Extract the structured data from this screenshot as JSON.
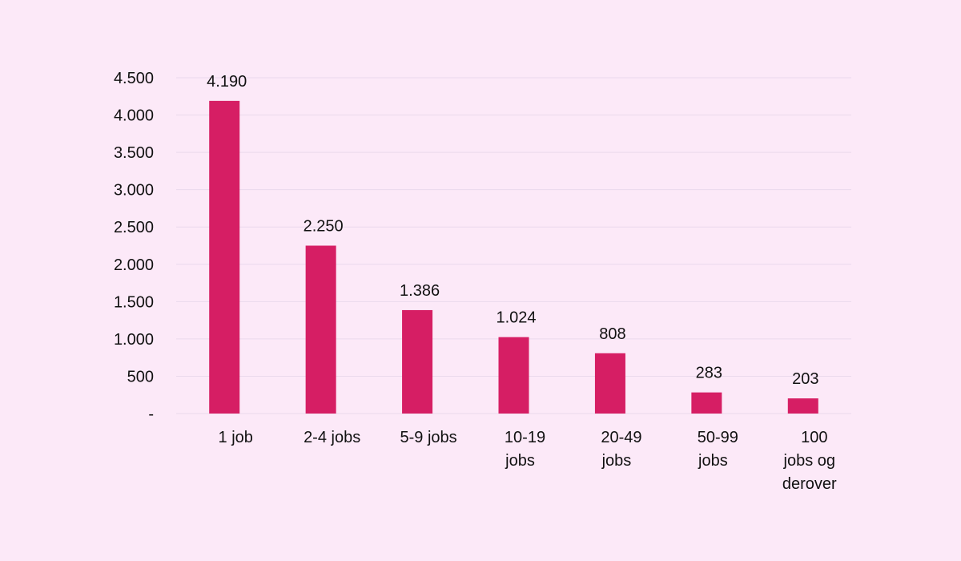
{
  "chart_data": {
    "type": "bar",
    "categories": [
      [
        "1 job"
      ],
      [
        "2-4 jobs"
      ],
      [
        "5-9 jobs"
      ],
      [
        "10-19",
        "jobs"
      ],
      [
        "20-49",
        "jobs"
      ],
      [
        "50-99",
        "jobs"
      ],
      [
        "100",
        "jobs og",
        "derover"
      ]
    ],
    "values": [
      4190,
      2250,
      1386,
      1024,
      808,
      283,
      203
    ],
    "data_labels": [
      "4.190",
      "2.250",
      "1.386",
      "1.024",
      "808",
      "283",
      "203"
    ],
    "y_ticks": [
      0,
      500,
      1000,
      1500,
      2000,
      2500,
      3000,
      3500,
      4000,
      4500
    ],
    "y_tick_labels": [
      "-",
      "500",
      "1.000",
      "1.500",
      "2.000",
      "2.500",
      "3.000",
      "3.500",
      "4.000",
      "4.500"
    ],
    "ylim": [
      0,
      4500
    ],
    "grid": true,
    "legend": "none",
    "colors": {
      "bar": "#d61e64",
      "background": "#fce9f8",
      "grid": "#ead9ec"
    }
  }
}
